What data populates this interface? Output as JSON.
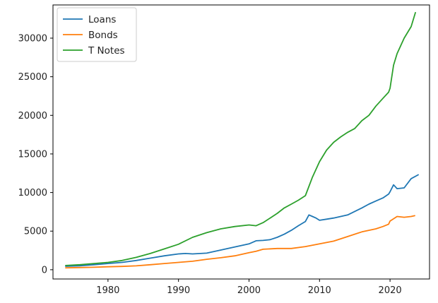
{
  "chart_data": {
    "type": "line",
    "title": "",
    "xlabel": "",
    "ylabel": "",
    "xlim": [
      1972.2,
      2025.6
    ],
    "ylim": [
      -1200,
      34300
    ],
    "x_ticks": [
      1980,
      1990,
      2000,
      2010,
      2020
    ],
    "y_ticks": [
      0,
      5000,
      10000,
      15000,
      20000,
      25000,
      30000
    ],
    "x_tick_labels": [
      "1980",
      "1990",
      "2000",
      "2010",
      "2020"
    ],
    "y_tick_labels": [
      "0",
      "5000",
      "10000",
      "15000",
      "20000",
      "25000",
      "30000"
    ],
    "grid": false,
    "legend_position": "top-left",
    "series": [
      {
        "name": "Loans",
        "color": "#1f77b4",
        "x": [
          1974,
          1976,
          1978,
          1980,
          1982,
          1984,
          1986,
          1988,
          1990,
          1991,
          1992,
          1994,
          1996,
          1998,
          2000,
          2001,
          2002,
          2003,
          2004,
          2005,
          2006,
          2007,
          2008,
          2008.5,
          2009,
          2009.5,
          2010,
          2011,
          2012,
          2014,
          2016,
          2017,
          2018,
          2019,
          2019.8,
          2020,
          2020.5,
          2021,
          2022,
          2023,
          2024
        ],
        "values": [
          450,
          500,
          650,
          800,
          950,
          1200,
          1500,
          1800,
          2050,
          2100,
          2050,
          2150,
          2550,
          2950,
          3350,
          3750,
          3800,
          3900,
          4200,
          4600,
          5100,
          5700,
          6250,
          7100,
          6900,
          6700,
          6400,
          6550,
          6700,
          7100,
          8000,
          8500,
          8900,
          9300,
          9800,
          10100,
          11000,
          10500,
          10600,
          11800,
          12300
        ]
      },
      {
        "name": "Bonds",
        "color": "#ff7f0e",
        "x": [
          1974,
          1976,
          1978,
          1980,
          1982,
          1984,
          1986,
          1988,
          1990,
          1992,
          1994,
          1996,
          1998,
          2000,
          2001,
          2002,
          2004,
          2006,
          2008,
          2010,
          2012,
          2014,
          2016,
          2018,
          2019,
          2019.8,
          2020,
          2020.5,
          2021,
          2022,
          2023,
          2023.5
        ],
        "values": [
          250,
          280,
          320,
          380,
          430,
          500,
          650,
          800,
          950,
          1100,
          1350,
          1550,
          1800,
          2200,
          2400,
          2650,
          2750,
          2750,
          3000,
          3350,
          3700,
          4300,
          4900,
          5300,
          5600,
          5900,
          6300,
          6600,
          6900,
          6800,
          6900,
          7000
        ]
      },
      {
        "name": "T Notes",
        "color": "#2ca02c",
        "x": [
          1974,
          1976,
          1978,
          1980,
          1982,
          1984,
          1986,
          1988,
          1990,
          1992,
          1994,
          1996,
          1998,
          2000,
          2001,
          2002,
          2003,
          2004,
          2005,
          2006,
          2007,
          2008,
          2009,
          2010,
          2011,
          2012,
          2013,
          2014,
          2015,
          2016,
          2017,
          2018,
          2019,
          2019.8,
          2020,
          2020.5,
          2021,
          2022,
          2023,
          2023.6
        ],
        "values": [
          550,
          650,
          800,
          950,
          1200,
          1600,
          2100,
          2700,
          3300,
          4200,
          4800,
          5300,
          5600,
          5800,
          5700,
          6100,
          6700,
          7300,
          8000,
          8500,
          9000,
          9600,
          12000,
          14000,
          15500,
          16500,
          17200,
          17800,
          18300,
          19300,
          20000,
          21200,
          22200,
          23000,
          23500,
          26500,
          28000,
          30000,
          31500,
          33300
        ]
      }
    ]
  }
}
